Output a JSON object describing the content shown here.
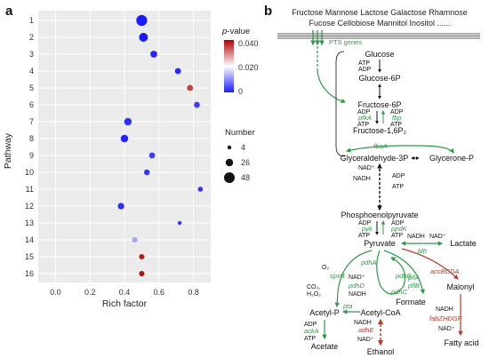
{
  "panel_a": {
    "letter": "a",
    "legend": {
      "pvalue_title": "p-value",
      "pvalue_ticks": [
        "0.040",
        "0.020",
        "0"
      ],
      "number_title": "Number",
      "number_items": [
        "4",
        "26",
        "48"
      ]
    }
  },
  "chart_data": {
    "type": "scatter",
    "title": "",
    "xlabel": "Rich factor",
    "ylabel": "Pathway",
    "xlim": [
      -0.1,
      0.9
    ],
    "x_ticks": [
      "0.0",
      "0.2",
      "0.4",
      "0.6",
      "0.8"
    ],
    "x_tick_values": [
      0.0,
      0.2,
      0.4,
      0.6,
      0.8
    ],
    "categories": [
      "1",
      "2",
      "3",
      "4",
      "5",
      "6",
      "7",
      "8",
      "9",
      "10",
      "11",
      "12",
      "13",
      "14",
      "15",
      "16"
    ],
    "grid": true,
    "color_scale": {
      "low": "#1a1aff",
      "mid": "#ffffff",
      "high": "#b30000",
      "range": [
        0,
        0.04
      ]
    },
    "points": [
      {
        "pathway": "1",
        "rich_factor": 0.5,
        "number": 48,
        "p_value": 0.0
      },
      {
        "pathway": "2",
        "rich_factor": 0.51,
        "number": 26,
        "p_value": 0.0
      },
      {
        "pathway": "3",
        "rich_factor": 0.57,
        "number": 12,
        "p_value": 0.001
      },
      {
        "pathway": "4",
        "rich_factor": 0.71,
        "number": 8,
        "p_value": 0.001
      },
      {
        "pathway": "5",
        "rich_factor": 0.78,
        "number": 8,
        "p_value": 0.035
      },
      {
        "pathway": "6",
        "rich_factor": 0.82,
        "number": 8,
        "p_value": 0.003
      },
      {
        "pathway": "7",
        "rich_factor": 0.42,
        "number": 16,
        "p_value": 0.002
      },
      {
        "pathway": "8",
        "rich_factor": 0.4,
        "number": 16,
        "p_value": 0.001
      },
      {
        "pathway": "9",
        "rich_factor": 0.56,
        "number": 8,
        "p_value": 0.003
      },
      {
        "pathway": "10",
        "rich_factor": 0.53,
        "number": 7,
        "p_value": 0.002
      },
      {
        "pathway": "11",
        "rich_factor": 0.84,
        "number": 5,
        "p_value": 0.002
      },
      {
        "pathway": "12",
        "rich_factor": 0.38,
        "number": 10,
        "p_value": 0.002
      },
      {
        "pathway": "13",
        "rich_factor": 0.72,
        "number": 4,
        "p_value": 0.002
      },
      {
        "pathway": "14",
        "rich_factor": 0.46,
        "number": 6,
        "p_value": 0.012
      },
      {
        "pathway": "15",
        "rich_factor": 0.5,
        "number": 6,
        "p_value": 0.038
      },
      {
        "pathway": "16",
        "rich_factor": 0.5,
        "number": 6,
        "p_value": 0.039
      }
    ]
  },
  "panel_b": {
    "letter": "b",
    "sugars_line1": "Fructose Mannose Lactose Galactose Rhamnose",
    "sugars_line2": "Fucose Cellobiose Mannitol Inositol ......",
    "pts_label": "PTS genes",
    "metabolites": {
      "glucose": "Glucose",
      "glucose6p": "Glucose-6P",
      "fructose6p": "Fructose-6P",
      "fructose16p2": "Fructose-1,6P₂",
      "g3p": "Glyceraldehyde-3P",
      "glycerone": "Glycerone-P",
      "pep": "Phosphoenolpyruvate",
      "pyruvate": "Pyruvate",
      "lactate": "Lactate",
      "malonyl": "Malonyl",
      "fatty_acid": "Fatty acid",
      "formate": "Formate",
      "acetylp": "Acetyl-P",
      "acetylcoa": "Acetyl-CoA",
      "acetate": "Acetate",
      "ethanol": "Ethanol"
    },
    "cofactors": {
      "atp": "ATP",
      "adp": "ADP",
      "nad": "NAD⁺",
      "nadh": "NADH",
      "o2": "O₂",
      "co2": "CO₂,",
      "h2o2": "H₂O₂"
    },
    "enzymes": {
      "pfkA": "pfkA",
      "fbp": "fbp",
      "fbaA": "fbaA",
      "pyk": "pyk",
      "ppdK": "ppdK",
      "ldh": "ldh",
      "pdhA": "pdhA",
      "pdhB": "pdhB",
      "pdhC": "pdhC",
      "pdhD": "pdhD",
      "spxB": "spxB",
      "pflA": "pflA",
      "pflB": "pflB",
      "pta": "pta",
      "ackA": "ackA",
      "adhE": "adhE",
      "accBCDA": "accBCDA",
      "fabZHDGF": "fabZHDGF"
    }
  }
}
